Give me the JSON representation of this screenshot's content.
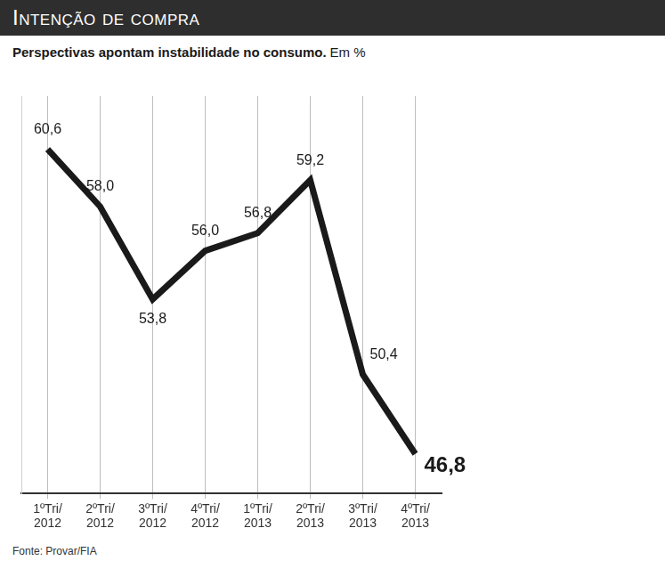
{
  "chart_data": {
    "type": "line",
    "title": "Intenção de compra",
    "subtitle": "Perspectivas apontam instabilidade no consumo.",
    "unit": "Em %",
    "source": "Fonte: Provar/FIA",
    "categories": [
      "1ºTri/\n2012",
      "2ºTri/\n2012",
      "3ºTri/\n2012",
      "4ºTri/\n2012",
      "1ºTri/\n2013",
      "2ºTri/\n2013",
      "3ºTri/\n2013",
      "4ºTri/\n2013"
    ],
    "values": [
      60.6,
      58.0,
      53.8,
      56.0,
      56.8,
      59.2,
      50.4,
      46.8
    ],
    "value_labels": [
      "60,6",
      "58,0",
      "53,8",
      "56,0",
      "56,8",
      "59,2",
      "50,4",
      "46,8"
    ],
    "color": "#1a1a1a",
    "ylim": [
      45,
      63
    ],
    "grid": true,
    "data_labels": true,
    "tick_labels": "x"
  }
}
